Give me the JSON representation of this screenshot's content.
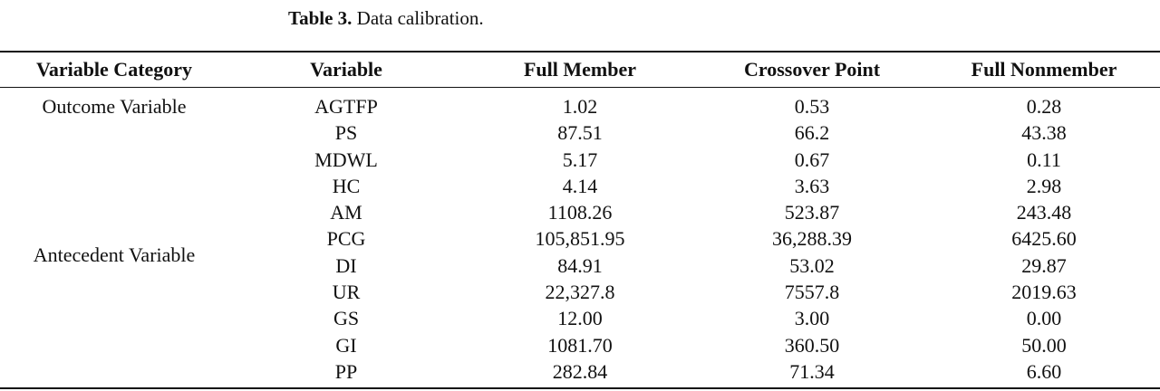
{
  "caption": {
    "label": "Table 3.",
    "text": "Data calibration."
  },
  "table": {
    "headers": {
      "category": "Variable Category",
      "variable": "Variable",
      "full_member": "Full Member",
      "crossover": "Crossover Point",
      "full_nonmember": "Full Nonmember"
    },
    "categories": {
      "outcome": "Outcome Variable",
      "antecedent": "Antecedent Variable"
    },
    "rows": [
      {
        "variable": "AGTFP",
        "full_member": "1.02",
        "crossover": "0.53",
        "full_nonmember": "0.28"
      },
      {
        "variable": "PS",
        "full_member": "87.51",
        "crossover": "66.2",
        "full_nonmember": "43.38"
      },
      {
        "variable": "MDWL",
        "full_member": "5.17",
        "crossover": "0.67",
        "full_nonmember": "0.11"
      },
      {
        "variable": "HC",
        "full_member": "4.14",
        "crossover": "3.63",
        "full_nonmember": "2.98"
      },
      {
        "variable": "AM",
        "full_member": "1108.26",
        "crossover": "523.87",
        "full_nonmember": "243.48"
      },
      {
        "variable": "PCG",
        "full_member": "105,851.95",
        "crossover": "36,288.39",
        "full_nonmember": "6425.60"
      },
      {
        "variable": "DI",
        "full_member": "84.91",
        "crossover": "53.02",
        "full_nonmember": "29.87"
      },
      {
        "variable": "UR",
        "full_member": "22,327.8",
        "crossover": "7557.8",
        "full_nonmember": "2019.63"
      },
      {
        "variable": "GS",
        "full_member": "12.00",
        "crossover": "3.00",
        "full_nonmember": "0.00"
      },
      {
        "variable": "GI",
        "full_member": "1081.70",
        "crossover": "360.50",
        "full_nonmember": "50.00"
      },
      {
        "variable": "PP",
        "full_member": "282.84",
        "crossover": "71.34",
        "full_nonmember": "6.60"
      }
    ]
  }
}
